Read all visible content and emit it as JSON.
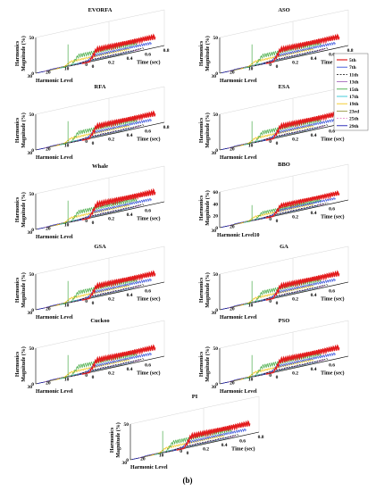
{
  "figure_label": "(b)",
  "axis_text": {
    "time_label": "Time (sec)",
    "harmonic_label": "Harmonic Level",
    "z_label_line1": "Harmonics",
    "z_label_line2": "Magnitude (%)",
    "harmonic_label_bbo": "Harmonic Level10"
  },
  "colors": {
    "5th": "#e31a1c",
    "7th": "#1f3dd6",
    "11th": "#000000",
    "13th": "#9b59b6",
    "15th": "#2ca02c",
    "17th": "#17becf",
    "19th": "#f0c000",
    "23rd": "#8a8a2e",
    "25th": "#e377c2",
    "29th": "#0000aa"
  },
  "legend": {
    "items": [
      {
        "label": "5th",
        "color": "#e31a1c"
      },
      {
        "label": "7th",
        "color": "#1f3dd6"
      },
      {
        "label": "11th",
        "color": "#000000"
      },
      {
        "label": "13th",
        "color": "#9b59b6"
      },
      {
        "label": "15th",
        "color": "#2ca02c"
      },
      {
        "label": "17th",
        "color": "#17becf"
      },
      {
        "label": "19th",
        "color": "#f0c000"
      },
      {
        "label": "23rd",
        "color": "#8a8a2e"
      },
      {
        "label": "25th",
        "color": "#e377c2"
      },
      {
        "label": "29th",
        "color": "#0000aa"
      }
    ]
  },
  "chart_data": [
    {
      "type": "line",
      "view": "3d",
      "title": "EVORFA",
      "ylabel": "Harmonic Level",
      "xlabel": "Time (sec)",
      "zlabel": "Harmonics Magnitude (%)",
      "x_ticks": [
        "0",
        "0.2",
        "0.4",
        "0.6",
        "0.8"
      ],
      "y_ticks": [
        "0",
        "10",
        "20",
        "30"
      ],
      "z_ticks": [
        "0",
        "50"
      ],
      "z_max": 50,
      "series": [
        {
          "name": "5th",
          "peak": 18
        },
        {
          "name": "7th",
          "peak": 9
        },
        {
          "name": "11th",
          "peak": 3
        },
        {
          "name": "13th",
          "peak": 2
        },
        {
          "name": "15th",
          "peak": 14
        },
        {
          "name": "17th",
          "peak": 1.5
        },
        {
          "name": "19th",
          "peak": 7
        },
        {
          "name": "23rd",
          "peak": 1
        },
        {
          "name": "25th",
          "peak": 1
        },
        {
          "name": "29th",
          "peak": 1
        }
      ]
    },
    {
      "type": "line",
      "view": "3d",
      "title": "ASO",
      "ylabel": "Harmonic Level",
      "xlabel": "Time (sec)",
      "zlabel": "Harmonics Magnitude (%)",
      "x_ticks": [
        "0",
        "0.2",
        "0.4",
        "0.6",
        "0.8"
      ],
      "y_ticks": [
        "0",
        "10",
        "20",
        "30"
      ],
      "z_ticks": [
        "0",
        "50"
      ],
      "z_max": 50,
      "series": [
        {
          "name": "5th",
          "peak": 18
        },
        {
          "name": "7th",
          "peak": 9
        },
        {
          "name": "11th",
          "peak": 3
        },
        {
          "name": "13th",
          "peak": 2
        },
        {
          "name": "15th",
          "peak": 14
        },
        {
          "name": "17th",
          "peak": 1.5
        },
        {
          "name": "19th",
          "peak": 7
        },
        {
          "name": "23rd",
          "peak": 1
        },
        {
          "name": "25th",
          "peak": 1
        },
        {
          "name": "29th",
          "peak": 1
        }
      ]
    },
    {
      "type": "line",
      "view": "3d",
      "title": "RFA",
      "ylabel": "Harmonic Level",
      "xlabel": "Time (sec)",
      "zlabel": "Harmonics Magnitude (%)",
      "x_ticks": [
        "0",
        "0.2",
        "0.4",
        "0.6",
        "0.8"
      ],
      "y_ticks": [
        "0",
        "10",
        "20",
        "30"
      ],
      "z_ticks": [
        "0",
        "50"
      ],
      "z_max": 50,
      "series": [
        {
          "name": "5th",
          "peak": 18
        },
        {
          "name": "7th",
          "peak": 9
        },
        {
          "name": "11th",
          "peak": 3
        },
        {
          "name": "13th",
          "peak": 2
        },
        {
          "name": "15th",
          "peak": 14
        },
        {
          "name": "17th",
          "peak": 1.5
        },
        {
          "name": "19th",
          "peak": 7
        },
        {
          "name": "23rd",
          "peak": 1
        },
        {
          "name": "25th",
          "peak": 1
        },
        {
          "name": "29th",
          "peak": 1
        }
      ]
    },
    {
      "type": "line",
      "view": "3d",
      "title": "ESA",
      "ylabel": "Harmonic Level",
      "xlabel": "Time (sec)",
      "zlabel": "Harmonics Magnitude (%)",
      "x_ticks": [
        "0",
        "0.2",
        "0.4",
        "0.6",
        "0.8"
      ],
      "y_ticks": [
        "0",
        "10",
        "20",
        "30"
      ],
      "z_ticks": [
        "0",
        "50"
      ],
      "z_max": 50,
      "series": [
        {
          "name": "5th",
          "peak": 18
        },
        {
          "name": "7th",
          "peak": 9
        },
        {
          "name": "11th",
          "peak": 3
        },
        {
          "name": "13th",
          "peak": 2
        },
        {
          "name": "15th",
          "peak": 14
        },
        {
          "name": "17th",
          "peak": 1.5
        },
        {
          "name": "19th",
          "peak": 7
        },
        {
          "name": "23rd",
          "peak": 1
        },
        {
          "name": "25th",
          "peak": 1
        },
        {
          "name": "29th",
          "peak": 1
        }
      ]
    },
    {
      "type": "line",
      "view": "3d",
      "title": "Whale",
      "ylabel": "Harmonic Level",
      "xlabel": "Time (sec)",
      "zlabel": "Harmonics Magnitude (%)",
      "x_ticks": [
        "0",
        "0.2",
        "0.4",
        "0.6"
      ],
      "y_ticks": [
        "0",
        "10",
        "20",
        "30"
      ],
      "z_ticks": [
        "0",
        "50"
      ],
      "z_max": 50,
      "series": [
        {
          "name": "5th",
          "peak": 20
        },
        {
          "name": "7th",
          "peak": 9
        },
        {
          "name": "11th",
          "peak": 3
        },
        {
          "name": "13th",
          "peak": 2
        },
        {
          "name": "15th",
          "peak": 14
        },
        {
          "name": "17th",
          "peak": 1.5
        },
        {
          "name": "19th",
          "peak": 7
        },
        {
          "name": "23rd",
          "peak": 1
        },
        {
          "name": "25th",
          "peak": 1
        },
        {
          "name": "29th",
          "peak": 1
        }
      ]
    },
    {
      "type": "line",
      "view": "3d",
      "title": "BBO",
      "ylabel": "Harmonic Level",
      "xlabel": "Time (sec)",
      "zlabel": "Harmonics Magnitude (%)",
      "x_ticks": [
        "0",
        "0.2",
        "0.4",
        "0.6"
      ],
      "y_ticks": [
        "0",
        "20",
        "30"
      ],
      "z_ticks": [
        "0",
        "20",
        "40",
        "60"
      ],
      "z_max": 60,
      "series": [
        {
          "name": "5th",
          "peak": 18
        },
        {
          "name": "7th",
          "peak": 9
        },
        {
          "name": "11th",
          "peak": 3
        },
        {
          "name": "13th",
          "peak": 2
        },
        {
          "name": "15th",
          "peak": 12
        },
        {
          "name": "17th",
          "peak": 1.5
        },
        {
          "name": "19th",
          "peak": 7
        },
        {
          "name": "23rd",
          "peak": 1
        },
        {
          "name": "25th",
          "peak": 1
        },
        {
          "name": "29th",
          "peak": 1
        }
      ]
    },
    {
      "type": "line",
      "view": "3d",
      "title": "GSA",
      "ylabel": "Harmonic Level",
      "xlabel": "Time (sec)",
      "zlabel": "Harmonics Magnitude (%)",
      "x_ticks": [
        "0",
        "0.2",
        "0.4",
        "0.6"
      ],
      "y_ticks": [
        "0",
        "10",
        "20",
        "30"
      ],
      "z_ticks": [
        "0",
        "50"
      ],
      "z_max": 50,
      "series": [
        {
          "name": "5th",
          "peak": 18
        },
        {
          "name": "7th",
          "peak": 9
        },
        {
          "name": "11th",
          "peak": 3
        },
        {
          "name": "13th",
          "peak": 2
        },
        {
          "name": "15th",
          "peak": 14
        },
        {
          "name": "17th",
          "peak": 1.5
        },
        {
          "name": "19th",
          "peak": 7
        },
        {
          "name": "23rd",
          "peak": 1
        },
        {
          "name": "25th",
          "peak": 1
        },
        {
          "name": "29th",
          "peak": 1
        }
      ]
    },
    {
      "type": "line",
      "view": "3d",
      "title": "GA",
      "ylabel": "Harmonic Level",
      "xlabel": "Time (sec)",
      "zlabel": "Harmonics Magnitude (%)",
      "x_ticks": [
        "0",
        "0.2",
        "0.4",
        "0.6"
      ],
      "y_ticks": [
        "0",
        "10",
        "20",
        "30"
      ],
      "z_ticks": [
        "0",
        "50"
      ],
      "z_max": 50,
      "series": [
        {
          "name": "5th",
          "peak": 18
        },
        {
          "name": "7th",
          "peak": 9
        },
        {
          "name": "11th",
          "peak": 3
        },
        {
          "name": "13th",
          "peak": 2
        },
        {
          "name": "15th",
          "peak": 14
        },
        {
          "name": "17th",
          "peak": 1.5
        },
        {
          "name": "19th",
          "peak": 7
        },
        {
          "name": "23rd",
          "peak": 1
        },
        {
          "name": "25th",
          "peak": 1
        },
        {
          "name": "29th",
          "peak": 1
        }
      ]
    },
    {
      "type": "line",
      "view": "3d",
      "title": "Cuckoo",
      "ylabel": "Harmonic Level",
      "xlabel": "Time (sec)",
      "zlabel": "Harmonics Magnitude (%)",
      "x_ticks": [
        "0",
        "0.2",
        "0.4",
        "0.6"
      ],
      "y_ticks": [
        "0",
        "10",
        "20",
        "30"
      ],
      "z_ticks": [
        "0",
        "50"
      ],
      "z_max": 50,
      "series": [
        {
          "name": "5th",
          "peak": 18
        },
        {
          "name": "7th",
          "peak": 9
        },
        {
          "name": "11th",
          "peak": 3
        },
        {
          "name": "13th",
          "peak": 2
        },
        {
          "name": "15th",
          "peak": 14
        },
        {
          "name": "17th",
          "peak": 1.5
        },
        {
          "name": "19th",
          "peak": 7
        },
        {
          "name": "23rd",
          "peak": 1
        },
        {
          "name": "25th",
          "peak": 1
        },
        {
          "name": "29th",
          "peak": 1
        }
      ]
    },
    {
      "type": "line",
      "view": "3d",
      "title": "PSO",
      "ylabel": "Harmonic Level",
      "xlabel": "Time (sec)",
      "zlabel": "Harmonics Magnitude (%)",
      "x_ticks": [
        "0",
        "0.2",
        "0.4",
        "0.6"
      ],
      "y_ticks": [
        "0",
        "10",
        "20",
        "30"
      ],
      "z_ticks": [
        "0",
        "50"
      ],
      "z_max": 50,
      "series": [
        {
          "name": "5th",
          "peak": 18
        },
        {
          "name": "7th",
          "peak": 9
        },
        {
          "name": "11th",
          "peak": 3
        },
        {
          "name": "13th",
          "peak": 2
        },
        {
          "name": "15th",
          "peak": 14
        },
        {
          "name": "17th",
          "peak": 1.5
        },
        {
          "name": "19th",
          "peak": 7
        },
        {
          "name": "23rd",
          "peak": 1
        },
        {
          "name": "25th",
          "peak": 1
        },
        {
          "name": "29th",
          "peak": 1
        }
      ]
    },
    {
      "type": "line",
      "view": "3d",
      "title": "PI",
      "ylabel": "Harmonic Level",
      "xlabel": "Time (sec)",
      "zlabel": "Harmonics Magnitude (%)",
      "x_ticks": [
        "0",
        "0.2",
        "0.4",
        "0.6",
        "0.8"
      ],
      "y_ticks": [
        "0",
        "10",
        "20",
        "30"
      ],
      "z_ticks": [
        "0",
        "50"
      ],
      "z_max": 50,
      "series": [
        {
          "name": "5th",
          "peak": 18
        },
        {
          "name": "7th",
          "peak": 9
        },
        {
          "name": "11th",
          "peak": 3
        },
        {
          "name": "13th",
          "peak": 2
        },
        {
          "name": "15th",
          "peak": 14
        },
        {
          "name": "17th",
          "peak": 1.5
        },
        {
          "name": "19th",
          "peak": 7
        },
        {
          "name": "23rd",
          "peak": 1
        },
        {
          "name": "25th",
          "peak": 1
        },
        {
          "name": "29th",
          "peak": 1
        }
      ]
    }
  ]
}
